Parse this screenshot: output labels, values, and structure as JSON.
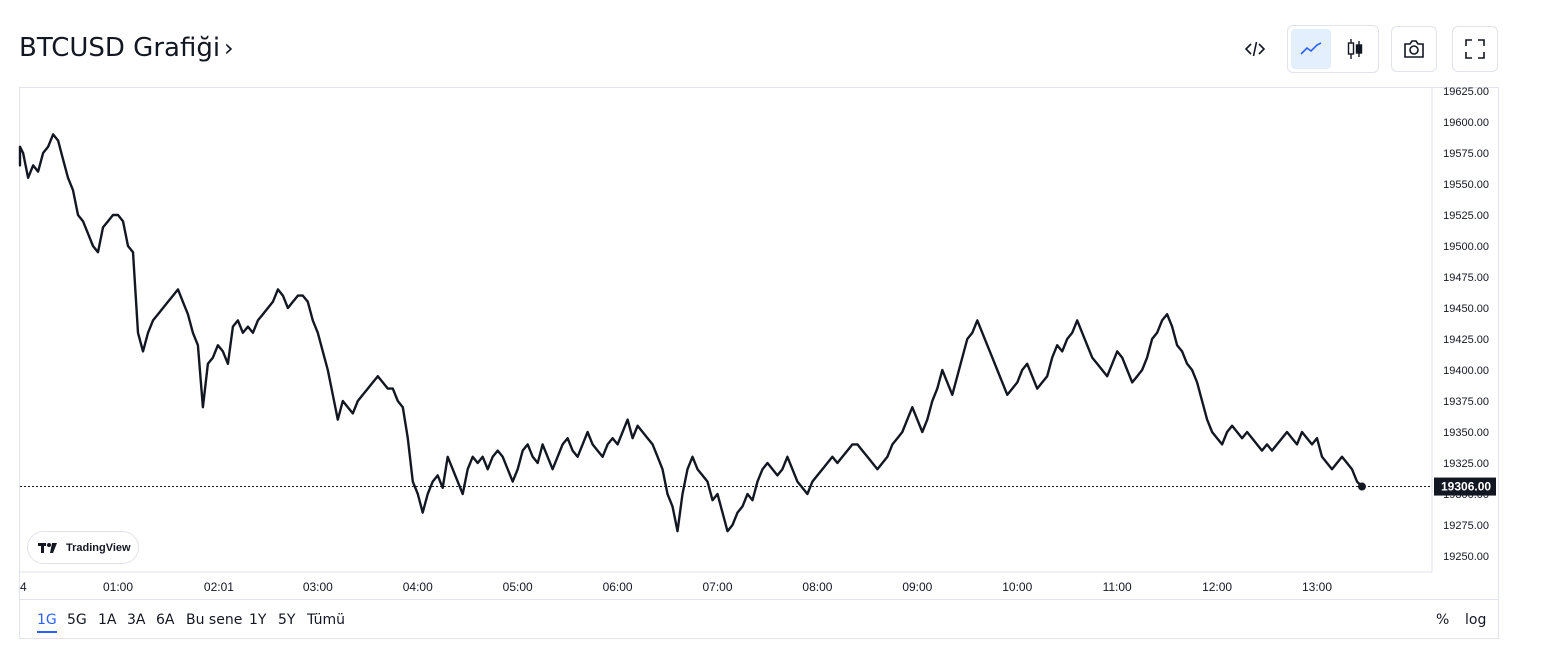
{
  "header": {
    "title": "BTCUSD Grafiği",
    "chevron": "›",
    "buttons": [
      {
        "name": "embed-code-icon"
      },
      {
        "name": "line-chart-icon",
        "active": true
      },
      {
        "name": "candlestick-icon"
      },
      {
        "name": "camera-icon"
      },
      {
        "name": "fullscreen-icon"
      }
    ]
  },
  "colors": {
    "line": "#131722",
    "accent": "#2962ff",
    "border": "#e0e3eb",
    "axis_text": "#131722",
    "price_tag_bg": "#131722"
  },
  "watermark": {
    "label": "TradingView"
  },
  "ranges": {
    "items": [
      "1G",
      "5G",
      "1A",
      "3A",
      "6A",
      "Bu sene",
      "1Y",
      "5Y",
      "Tümü"
    ],
    "active": "1G",
    "percent_label": "%",
    "log_label": "log"
  },
  "chart_data": {
    "type": "line",
    "series_name": "",
    "x_unit": "time of day (hours)",
    "x_ticks": [
      {
        "label": "4",
        "hour": -0.2
      },
      {
        "label": "01:00",
        "hour": 1.0
      },
      {
        "label": "02:01",
        "hour": 2.01
      },
      {
        "label": "03:00",
        "hour": 3.0
      },
      {
        "label": "04:00",
        "hour": 4.0
      },
      {
        "label": "05:00",
        "hour": 5.0
      },
      {
        "label": "06:00",
        "hour": 6.0
      },
      {
        "label": "07:00",
        "hour": 7.0
      },
      {
        "label": "08:00",
        "hour": 8.0
      },
      {
        "label": "09:00",
        "hour": 9.0
      },
      {
        "label": "10:00",
        "hour": 10.0
      },
      {
        "label": "11:00",
        "hour": 11.0
      },
      {
        "label": "12:00",
        "hour": 12.0
      },
      {
        "label": "13:00",
        "hour": 13.0
      }
    ],
    "y_ticks": [
      "19625.00",
      "19600.00",
      "19575.00",
      "19550.00",
      "19525.00",
      "19500.00",
      "19475.00",
      "19450.00",
      "19425.00",
      "19400.00",
      "19375.00",
      "19350.00",
      "19325.00",
      "19300.00",
      "19275.00",
      "19250.00"
    ],
    "ylim": [
      19250,
      19625
    ],
    "last_price": 19306.0,
    "last_price_label": "19306.00",
    "grid": false,
    "points": [
      [
        -0.2,
        19575
      ],
      [
        -0.15,
        19570
      ],
      [
        -0.1,
        19580
      ],
      [
        -0.05,
        19565
      ],
      [
        0.0,
        19580
      ],
      [
        0.05,
        19575
      ],
      [
        0.1,
        19555
      ],
      [
        0.15,
        19565
      ],
      [
        0.2,
        19560
      ],
      [
        0.25,
        19575
      ],
      [
        0.3,
        19580
      ],
      [
        0.35,
        19590
      ],
      [
        0.4,
        19585
      ],
      [
        0.45,
        19570
      ],
      [
        0.5,
        19555
      ],
      [
        0.55,
        19545
      ],
      [
        0.6,
        19525
      ],
      [
        0.65,
        19520
      ],
      [
        0.7,
        19510
      ],
      [
        0.75,
        19500
      ],
      [
        0.8,
        19495
      ],
      [
        0.85,
        19515
      ],
      [
        0.9,
        19520
      ],
      [
        0.95,
        19525
      ],
      [
        1.0,
        19525
      ],
      [
        1.05,
        19520
      ],
      [
        1.1,
        19500
      ],
      [
        1.15,
        19495
      ],
      [
        1.2,
        19430
      ],
      [
        1.25,
        19415
      ],
      [
        1.3,
        19430
      ],
      [
        1.35,
        19440
      ],
      [
        1.4,
        19445
      ],
      [
        1.45,
        19450
      ],
      [
        1.5,
        19455
      ],
      [
        1.55,
        19460
      ],
      [
        1.6,
        19465
      ],
      [
        1.65,
        19455
      ],
      [
        1.7,
        19445
      ],
      [
        1.75,
        19430
      ],
      [
        1.8,
        19420
      ],
      [
        1.85,
        19370
      ],
      [
        1.9,
        19405
      ],
      [
        1.95,
        19410
      ],
      [
        2.0,
        19420
      ],
      [
        2.05,
        19415
      ],
      [
        2.1,
        19405
      ],
      [
        2.15,
        19435
      ],
      [
        2.2,
        19440
      ],
      [
        2.25,
        19430
      ],
      [
        2.3,
        19435
      ],
      [
        2.35,
        19430
      ],
      [
        2.4,
        19440
      ],
      [
        2.45,
        19445
      ],
      [
        2.5,
        19450
      ],
      [
        2.55,
        19455
      ],
      [
        2.6,
        19465
      ],
      [
        2.65,
        19460
      ],
      [
        2.7,
        19450
      ],
      [
        2.75,
        19455
      ],
      [
        2.8,
        19460
      ],
      [
        2.85,
        19460
      ],
      [
        2.9,
        19455
      ],
      [
        2.95,
        19440
      ],
      [
        3.0,
        19430
      ],
      [
        3.05,
        19415
      ],
      [
        3.1,
        19400
      ],
      [
        3.15,
        19380
      ],
      [
        3.2,
        19360
      ],
      [
        3.25,
        19375
      ],
      [
        3.3,
        19370
      ],
      [
        3.35,
        19365
      ],
      [
        3.4,
        19375
      ],
      [
        3.45,
        19380
      ],
      [
        3.5,
        19385
      ],
      [
        3.55,
        19390
      ],
      [
        3.6,
        19395
      ],
      [
        3.65,
        19390
      ],
      [
        3.7,
        19385
      ],
      [
        3.75,
        19385
      ],
      [
        3.8,
        19375
      ],
      [
        3.85,
        19370
      ],
      [
        3.9,
        19345
      ],
      [
        3.95,
        19310
      ],
      [
        4.0,
        19300
      ],
      [
        4.05,
        19285
      ],
      [
        4.1,
        19300
      ],
      [
        4.15,
        19310
      ],
      [
        4.2,
        19315
      ],
      [
        4.25,
        19305
      ],
      [
        4.3,
        19330
      ],
      [
        4.35,
        19320
      ],
      [
        4.4,
        19310
      ],
      [
        4.45,
        19300
      ],
      [
        4.5,
        19320
      ],
      [
        4.55,
        19330
      ],
      [
        4.6,
        19325
      ],
      [
        4.65,
        19330
      ],
      [
        4.7,
        19320
      ],
      [
        4.75,
        19330
      ],
      [
        4.8,
        19335
      ],
      [
        4.85,
        19330
      ],
      [
        4.9,
        19320
      ],
      [
        4.95,
        19310
      ],
      [
        5.0,
        19320
      ],
      [
        5.05,
        19335
      ],
      [
        5.1,
        19340
      ],
      [
        5.15,
        19330
      ],
      [
        5.2,
        19325
      ],
      [
        5.25,
        19340
      ],
      [
        5.3,
        19330
      ],
      [
        5.35,
        19320
      ],
      [
        5.4,
        19330
      ],
      [
        5.45,
        19340
      ],
      [
        5.5,
        19345
      ],
      [
        5.55,
        19335
      ],
      [
        5.6,
        19330
      ],
      [
        5.65,
        19340
      ],
      [
        5.7,
        19350
      ],
      [
        5.75,
        19340
      ],
      [
        5.8,
        19335
      ],
      [
        5.85,
        19330
      ],
      [
        5.9,
        19340
      ],
      [
        5.95,
        19345
      ],
      [
        6.0,
        19340
      ],
      [
        6.05,
        19350
      ],
      [
        6.1,
        19360
      ],
      [
        6.15,
        19345
      ],
      [
        6.2,
        19355
      ],
      [
        6.25,
        19350
      ],
      [
        6.3,
        19345
      ],
      [
        6.35,
        19340
      ],
      [
        6.4,
        19330
      ],
      [
        6.45,
        19320
      ],
      [
        6.5,
        19300
      ],
      [
        6.55,
        19290
      ],
      [
        6.6,
        19270
      ],
      [
        6.65,
        19300
      ],
      [
        6.7,
        19320
      ],
      [
        6.75,
        19330
      ],
      [
        6.8,
        19320
      ],
      [
        6.85,
        19315
      ],
      [
        6.9,
        19310
      ],
      [
        6.95,
        19295
      ],
      [
        7.0,
        19300
      ],
      [
        7.05,
        19285
      ],
      [
        7.1,
        19270
      ],
      [
        7.15,
        19275
      ],
      [
        7.2,
        19285
      ],
      [
        7.25,
        19290
      ],
      [
        7.3,
        19300
      ],
      [
        7.35,
        19295
      ],
      [
        7.4,
        19310
      ],
      [
        7.45,
        19320
      ],
      [
        7.5,
        19325
      ],
      [
        7.55,
        19320
      ],
      [
        7.6,
        19315
      ],
      [
        7.65,
        19320
      ],
      [
        7.7,
        19330
      ],
      [
        7.75,
        19320
      ],
      [
        7.8,
        19310
      ],
      [
        7.85,
        19305
      ],
      [
        7.9,
        19300
      ],
      [
        7.95,
        19310
      ],
      [
        8.0,
        19315
      ],
      [
        8.05,
        19320
      ],
      [
        8.1,
        19325
      ],
      [
        8.15,
        19330
      ],
      [
        8.2,
        19325
      ],
      [
        8.25,
        19330
      ],
      [
        8.3,
        19335
      ],
      [
        8.35,
        19340
      ],
      [
        8.4,
        19340
      ],
      [
        8.45,
        19335
      ],
      [
        8.5,
        19330
      ],
      [
        8.55,
        19325
      ],
      [
        8.6,
        19320
      ],
      [
        8.65,
        19325
      ],
      [
        8.7,
        19330
      ],
      [
        8.75,
        19340
      ],
      [
        8.8,
        19345
      ],
      [
        8.85,
        19350
      ],
      [
        8.9,
        19360
      ],
      [
        8.95,
        19370
      ],
      [
        9.0,
        19360
      ],
      [
        9.05,
        19350
      ],
      [
        9.1,
        19360
      ],
      [
        9.15,
        19375
      ],
      [
        9.2,
        19385
      ],
      [
        9.25,
        19400
      ],
      [
        9.3,
        19390
      ],
      [
        9.35,
        19380
      ],
      [
        9.4,
        19395
      ],
      [
        9.45,
        19410
      ],
      [
        9.5,
        19425
      ],
      [
        9.55,
        19430
      ],
      [
        9.6,
        19440
      ],
      [
        9.65,
        19430
      ],
      [
        9.7,
        19420
      ],
      [
        9.75,
        19410
      ],
      [
        9.8,
        19400
      ],
      [
        9.85,
        19390
      ],
      [
        9.9,
        19380
      ],
      [
        9.95,
        19385
      ],
      [
        10.0,
        19390
      ],
      [
        10.05,
        19400
      ],
      [
        10.1,
        19405
      ],
      [
        10.15,
        19395
      ],
      [
        10.2,
        19385
      ],
      [
        10.25,
        19390
      ],
      [
        10.3,
        19395
      ],
      [
        10.35,
        19410
      ],
      [
        10.4,
        19420
      ],
      [
        10.45,
        19415
      ],
      [
        10.5,
        19425
      ],
      [
        10.55,
        19430
      ],
      [
        10.6,
        19440
      ],
      [
        10.65,
        19430
      ],
      [
        10.7,
        19420
      ],
      [
        10.75,
        19410
      ],
      [
        10.8,
        19405
      ],
      [
        10.85,
        19400
      ],
      [
        10.9,
        19395
      ],
      [
        10.95,
        19405
      ],
      [
        11.0,
        19415
      ],
      [
        11.05,
        19410
      ],
      [
        11.1,
        19400
      ],
      [
        11.15,
        19390
      ],
      [
        11.2,
        19395
      ],
      [
        11.25,
        19400
      ],
      [
        11.3,
        19410
      ],
      [
        11.35,
        19425
      ],
      [
        11.4,
        19430
      ],
      [
        11.45,
        19440
      ],
      [
        11.5,
        19445
      ],
      [
        11.55,
        19435
      ],
      [
        11.6,
        19420
      ],
      [
        11.65,
        19415
      ],
      [
        11.7,
        19405
      ],
      [
        11.75,
        19400
      ],
      [
        11.8,
        19390
      ],
      [
        11.85,
        19375
      ],
      [
        11.9,
        19360
      ],
      [
        11.95,
        19350
      ],
      [
        12.0,
        19345
      ],
      [
        12.05,
        19340
      ],
      [
        12.1,
        19350
      ],
      [
        12.15,
        19355
      ],
      [
        12.2,
        19350
      ],
      [
        12.25,
        19345
      ],
      [
        12.3,
        19350
      ],
      [
        12.35,
        19345
      ],
      [
        12.4,
        19340
      ],
      [
        12.45,
        19335
      ],
      [
        12.5,
        19340
      ],
      [
        12.55,
        19335
      ],
      [
        12.6,
        19340
      ],
      [
        12.65,
        19345
      ],
      [
        12.7,
        19350
      ],
      [
        12.75,
        19345
      ],
      [
        12.8,
        19340
      ],
      [
        12.85,
        19350
      ],
      [
        12.9,
        19345
      ],
      [
        12.95,
        19340
      ],
      [
        13.0,
        19345
      ],
      [
        13.05,
        19330
      ],
      [
        13.1,
        19325
      ],
      [
        13.15,
        19320
      ],
      [
        13.2,
        19325
      ],
      [
        13.25,
        19330
      ],
      [
        13.3,
        19325
      ],
      [
        13.35,
        19320
      ],
      [
        13.4,
        19310
      ],
      [
        13.45,
        19306
      ]
    ]
  }
}
